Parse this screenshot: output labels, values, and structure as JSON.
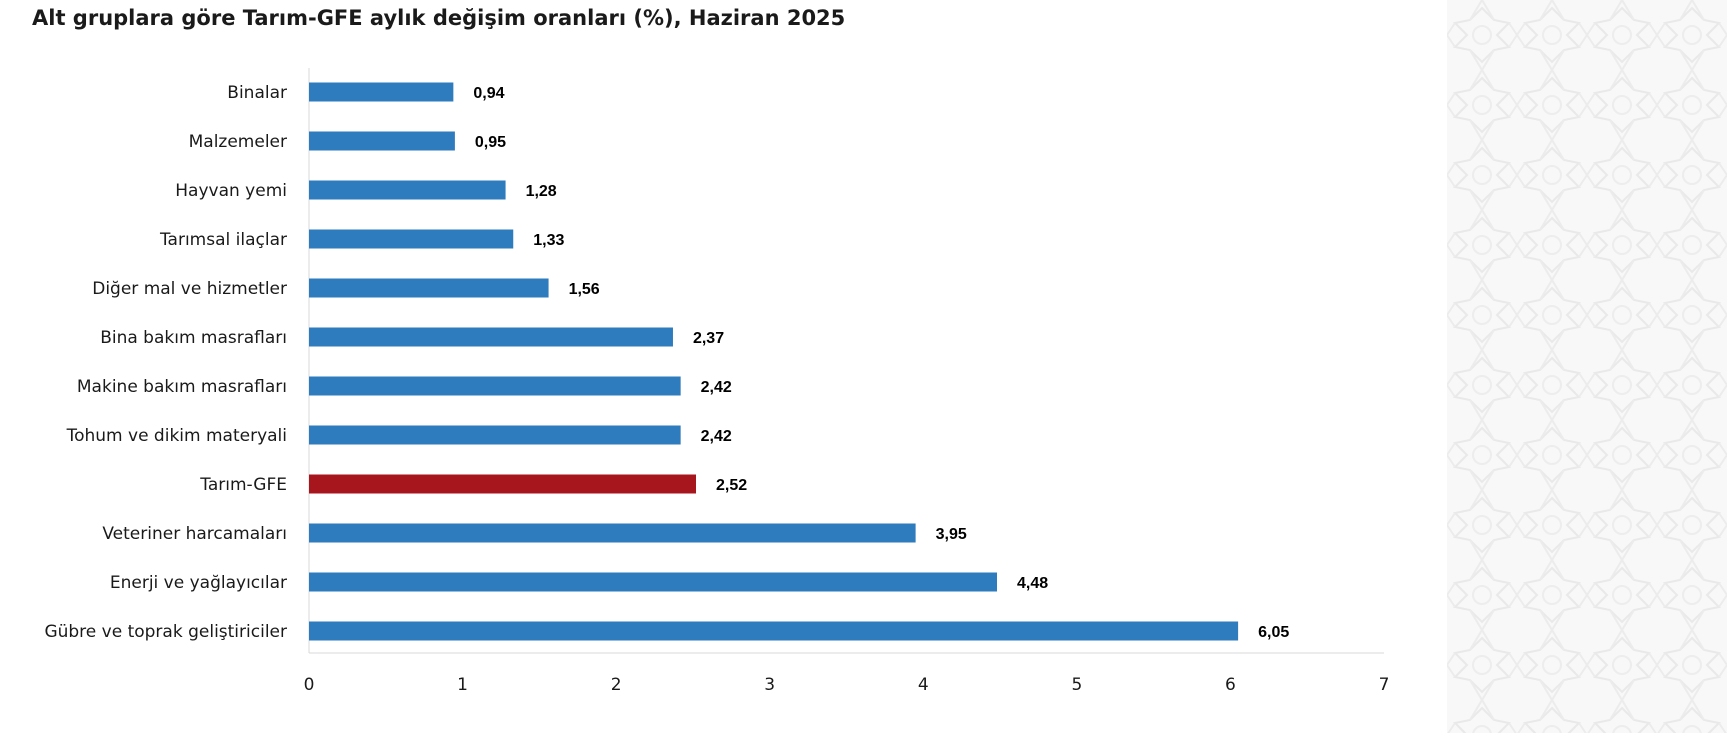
{
  "page": {
    "title": "Alt gruplara göre Tarım-GFE aylık değişim oranları (%), Haziran 2025"
  },
  "chart_data": {
    "type": "bar",
    "orientation": "horizontal",
    "title": "Alt gruplara göre Tarım-GFE aylık değişim oranları (%), Haziran 2025",
    "xlabel": "",
    "ylabel": "",
    "xlim": [
      0,
      7
    ],
    "x_ticks": [
      "0",
      "1",
      "2",
      "3",
      "4",
      "5",
      "6",
      "7"
    ],
    "grid": false,
    "legend": "none",
    "categories": [
      "Binalar",
      "Malzemeler",
      "Hayvan yemi",
      "Tarımsal ilaçlar",
      "Diğer mal ve hizmetler",
      "Bina bakım masrafları",
      "Makine bakım masrafları",
      "Tohum ve dikim materyali",
      "Tarım-GFE",
      "Veteriner harcamaları",
      "Enerji  ve yağlayıcılar",
      "Gübre ve toprak geliştiriciler"
    ],
    "values": [
      0.94,
      0.95,
      1.28,
      1.33,
      1.56,
      2.37,
      2.42,
      2.42,
      2.52,
      3.95,
      4.48,
      6.05
    ],
    "value_labels": [
      "0,94",
      "0,95",
      "1,28",
      "1,33",
      "1,56",
      "2,37",
      "2,42",
      "2,42",
      "2,52",
      "3,95",
      "4,48",
      "6,05"
    ],
    "colors": {
      "default_bar": "#2e7bbd",
      "highlight_bar": "#a8161d",
      "axis": "#d9d9d9",
      "text": "#1a1a1a"
    },
    "highlight_category": "Tarım-GFE"
  }
}
